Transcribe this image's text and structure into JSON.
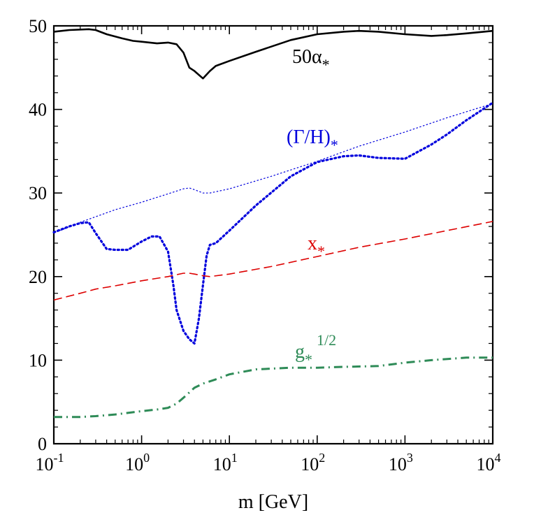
{
  "chart_data": {
    "type": "line",
    "xlabel": "m [GeV]",
    "ylabel": "",
    "xscale": "log",
    "xlim": [
      0.1,
      10000
    ],
    "ylim": [
      0,
      50
    ],
    "grid": false,
    "legend": "inline labels",
    "x_ticks": [
      {
        "base": "10",
        "exp": "-1",
        "value": 0.1
      },
      {
        "base": "10",
        "exp": "0",
        "value": 1
      },
      {
        "base": "10",
        "exp": "1",
        "value": 10
      },
      {
        "base": "10",
        "exp": "2",
        "value": 100
      },
      {
        "base": "10",
        "exp": "3",
        "value": 1000
      },
      {
        "base": "10",
        "exp": "4",
        "value": 10000
      }
    ],
    "y_ticks": [
      "0",
      "10",
      "20",
      "30",
      "40",
      "50"
    ],
    "series": [
      {
        "label_main": "50α",
        "label_sub": "*",
        "label_sup": "",
        "color": "#000000",
        "style": "solid",
        "x": [
          0.1,
          0.15,
          0.25,
          0.3,
          0.4,
          0.6,
          0.8,
          1.0,
          1.5,
          2.0,
          2.5,
          3.0,
          3.5,
          4.0,
          5.0,
          6.0,
          7.0,
          10,
          20,
          50,
          100,
          200,
          300,
          500,
          1000,
          2000,
          3000,
          5000,
          10000
        ],
        "y": [
          49.3,
          49.5,
          49.6,
          49.5,
          49.0,
          48.5,
          48.2,
          48.1,
          47.9,
          48.0,
          47.8,
          46.8,
          45.0,
          44.6,
          43.7,
          44.6,
          45.2,
          45.8,
          46.9,
          48.3,
          49.0,
          49.3,
          49.4,
          49.3,
          49.0,
          48.8,
          48.9,
          49.1,
          49.4
        ]
      },
      {
        "label_main": "(Γ/H)",
        "label_sub": "*",
        "label_sup": "",
        "color": "#0000dd",
        "style": "dotted",
        "x": [
          0.1,
          0.15,
          0.2,
          0.25,
          0.3,
          0.4,
          0.5,
          0.7,
          1.0,
          1.3,
          1.6,
          2.0,
          2.3,
          2.5,
          3.0,
          3.5,
          4.0,
          4.5,
          5.0,
          5.5,
          6.0,
          7.0,
          10,
          20,
          50,
          100,
          200,
          300,
          500,
          1000,
          2000,
          3000,
          5000,
          10000
        ],
        "y": [
          25.3,
          26.0,
          26.4,
          26.5,
          25.2,
          23.3,
          23.2,
          23.2,
          24.2,
          24.8,
          24.8,
          23.0,
          19.0,
          16.0,
          13.5,
          12.5,
          12.0,
          15.0,
          19.0,
          22.5,
          23.8,
          24.0,
          25.5,
          28.5,
          32.0,
          33.7,
          34.4,
          34.5,
          34.2,
          34.1,
          35.8,
          37.0,
          38.7,
          40.8
        ]
      },
      {
        "label_main": "",
        "label_sub": "",
        "label_sup": "",
        "color": "#0000dd",
        "style": "thin-dotted",
        "x": [
          0.1,
          0.2,
          0.5,
          1.0,
          2.0,
          3.0,
          3.5,
          4.0,
          5.0,
          6.0,
          10,
          30,
          100,
          300,
          1000,
          3000,
          10000
        ],
        "y": [
          25.2,
          26.5,
          28.0,
          28.9,
          29.9,
          30.5,
          30.6,
          30.4,
          30.0,
          30.0,
          30.5,
          32.0,
          33.8,
          35.6,
          37.3,
          39.0,
          40.7
        ]
      },
      {
        "label_main": "x",
        "label_sub": "*",
        "label_sup": "",
        "color": "#dd0000",
        "style": "dashed",
        "x": [
          0.1,
          0.2,
          0.3,
          0.5,
          1.0,
          2.0,
          3.0,
          3.5,
          4.0,
          5.0,
          6.0,
          10,
          30,
          100,
          300,
          1000,
          3000,
          10000
        ],
        "y": [
          17.2,
          18.0,
          18.5,
          18.9,
          19.5,
          20.0,
          20.4,
          20.4,
          20.3,
          20.1,
          20.0,
          20.3,
          21.2,
          22.4,
          23.5,
          24.5,
          25.5,
          26.6
        ]
      },
      {
        "label_main": "g",
        "label_sub": "*",
        "label_sup": "1/2",
        "color": "#2e8b57",
        "style": "dash-dot",
        "x": [
          0.1,
          0.2,
          0.3,
          0.5,
          1.0,
          1.5,
          2.0,
          2.5,
          3.0,
          4.0,
          5.0,
          7.0,
          10,
          20,
          50,
          100,
          200,
          500,
          1000,
          2000,
          5000,
          10000
        ],
        "y": [
          3.2,
          3.2,
          3.3,
          3.5,
          3.9,
          4.1,
          4.3,
          4.8,
          5.5,
          6.7,
          7.2,
          7.7,
          8.3,
          8.9,
          9.1,
          9.1,
          9.2,
          9.3,
          9.7,
          10.0,
          10.3,
          10.3
        ]
      }
    ]
  }
}
